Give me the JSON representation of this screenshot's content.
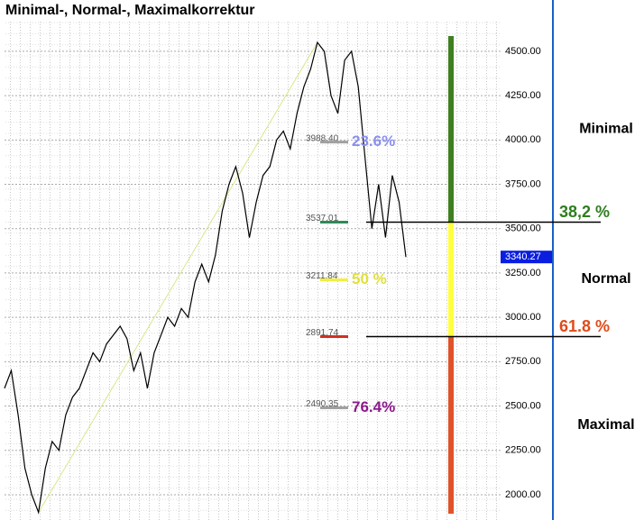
{
  "chart_data": {
    "type": "line",
    "title": "Minimal-, Normal-, Maximalkorrektur",
    "series": [
      {
        "color": "#000000",
        "values": [
          2600,
          2700,
          2450,
          2150,
          2000,
          1900,
          2150,
          2300,
          2250,
          2450,
          2550,
          2600,
          2700,
          2800,
          2750,
          2850,
          2900,
          2950,
          2880,
          2700,
          2800,
          2600,
          2800,
          2900,
          3000,
          2950,
          3050,
          3000,
          3200,
          3300,
          3200,
          3350,
          3600,
          3750,
          3850,
          3700,
          3450,
          3650,
          3800,
          3850,
          4000,
          4050,
          3950,
          4150,
          4300,
          4400,
          4550,
          4500,
          4250,
          4150,
          4450,
          4500,
          4300,
          3900,
          3500,
          3750,
          3450,
          3800,
          3650,
          3340.27
        ]
      }
    ],
    "ylim": [
      1893,
      4586
    ],
    "yticks": [
      {
        "value": 2000,
        "label": "2000.00"
      },
      {
        "value": 2250,
        "label": "2250.00"
      },
      {
        "value": 2500,
        "label": "2500.00"
      },
      {
        "value": 2750,
        "label": "2750.00"
      },
      {
        "value": 3000,
        "label": "3000.00"
      },
      {
        "value": 3250,
        "label": "3250.00"
      },
      {
        "value": 3500,
        "label": "3500.00"
      },
      {
        "value": 3750,
        "label": "3750.00"
      },
      {
        "value": 4000,
        "label": "4000.00"
      },
      {
        "value": 4250,
        "label": "4250.00"
      },
      {
        "value": 4500,
        "label": "4500.00"
      }
    ],
    "grid": true,
    "last_price": {
      "value": 3340.27,
      "label": "3340.27",
      "color": "#0a1ee0"
    },
    "levels": [
      {
        "value": 3988.4,
        "value_label": "3988.40",
        "color": "#a0a0a0",
        "percent": "23.6%",
        "percent_color": "#8a8ff0",
        "extended": false
      },
      {
        "value": 3537.01,
        "value_label": "3537.01",
        "color": "#2e8b57",
        "percent": "38,2 %",
        "percent_color": "#2e7d1e",
        "extended": true
      },
      {
        "value": 3211.84,
        "value_label": "3211.84",
        "color": "#f0f040",
        "percent": "50 %",
        "percent_color": "#e0e040",
        "extended": false
      },
      {
        "value": 2891.74,
        "value_label": "2891.74",
        "color": "#d03020",
        "percent": "61.8 %",
        "percent_color": "#e04a1a",
        "extended": true
      },
      {
        "value": 2490.35,
        "value_label": "2490.35",
        "color": "#a0a0a0",
        "percent": "76.4%",
        "percent_color": "#8b1a8b",
        "extended": false
      }
    ],
    "zones": [
      {
        "name": "Minimal",
        "color": "#3f7f1f"
      },
      {
        "name": "Normal",
        "color": "#ffff40"
      },
      {
        "name": "Maximal",
        "color": "#e0522a"
      }
    ]
  }
}
